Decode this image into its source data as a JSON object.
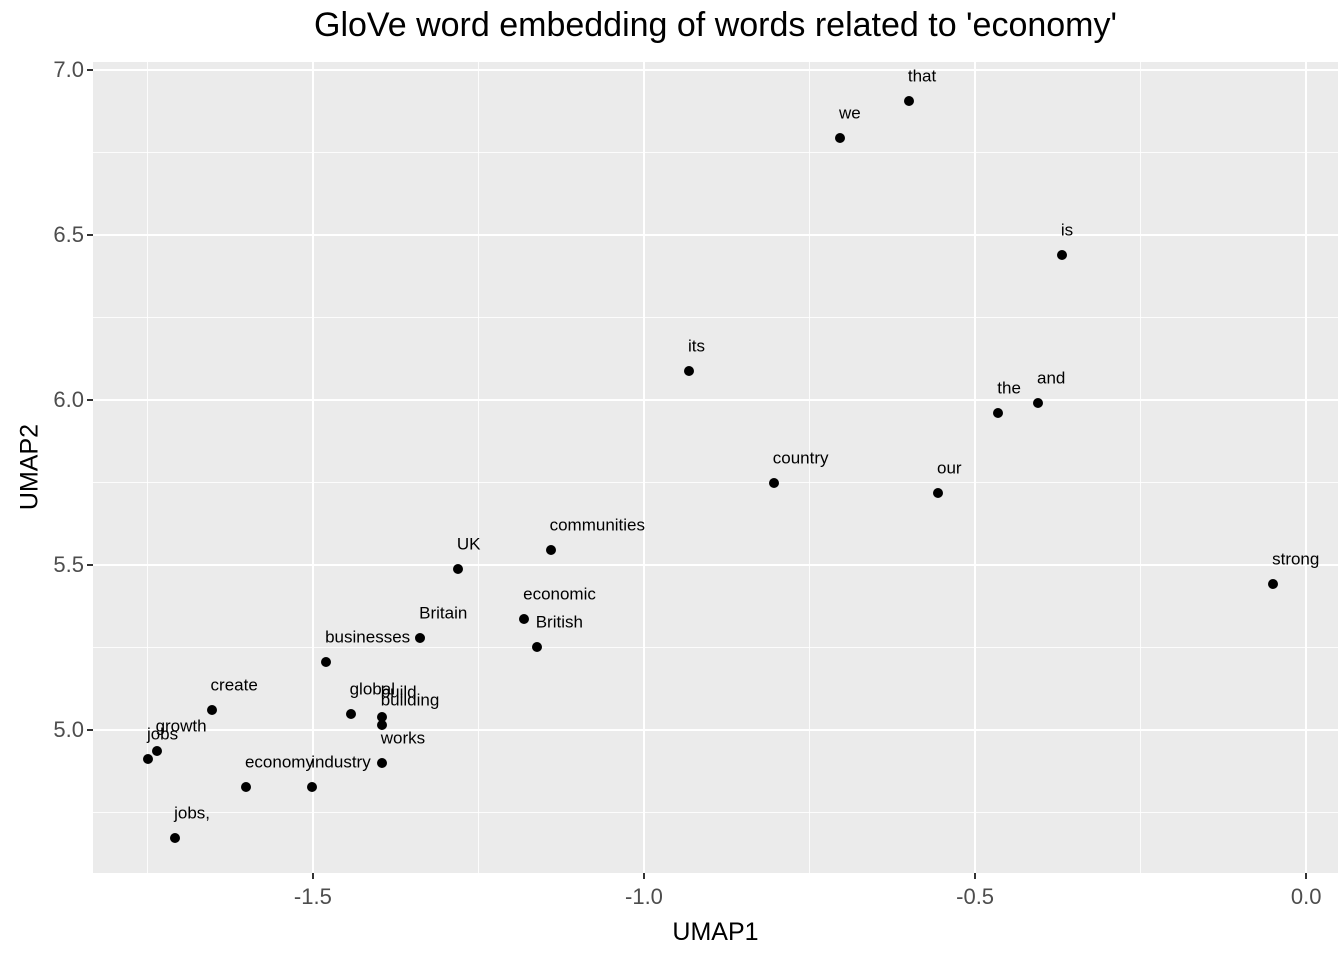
{
  "title": "GloVe word embedding of words related to 'economy'",
  "chart_data": {
    "type": "scatter",
    "title": "GloVe word embedding of words related to 'economy'",
    "xlabel": "UMAP1",
    "ylabel": "UMAP2",
    "xlim": [
      -1.832,
      0.048
    ],
    "ylim": [
      4.567,
      7.024
    ],
    "x_major_ticks": [
      -1.5,
      -1.0,
      -0.5,
      0.0
    ],
    "x_minor_ticks": [
      -1.75,
      -1.25,
      -0.75,
      -0.25
    ],
    "y_major_ticks": [
      7.0,
      6.5,
      6.0,
      5.5,
      5.0
    ],
    "y_minor_ticks": [
      6.75,
      6.25,
      5.75,
      5.25,
      4.75
    ],
    "grid": true,
    "legend": false,
    "points": [
      {
        "word": "that",
        "x": -0.6,
        "y": 6.906
      },
      {
        "word": "we",
        "x": -0.704,
        "y": 6.794
      },
      {
        "word": "is",
        "x": -0.369,
        "y": 6.439
      },
      {
        "word": "its",
        "x": -0.932,
        "y": 6.088
      },
      {
        "word": "the",
        "x": -0.465,
        "y": 5.961
      },
      {
        "word": "and",
        "x": -0.405,
        "y": 5.991
      },
      {
        "word": "country",
        "x": -0.804,
        "y": 5.748
      },
      {
        "word": "our",
        "x": -0.556,
        "y": 5.718
      },
      {
        "word": "communities",
        "x": -1.141,
        "y": 5.545
      },
      {
        "word": "UK",
        "x": -1.281,
        "y": 5.488
      },
      {
        "word": "strong",
        "x": -0.05,
        "y": 5.442
      },
      {
        "word": "economic",
        "x": -1.181,
        "y": 5.336
      },
      {
        "word": "Britain",
        "x": -1.338,
        "y": 5.279
      },
      {
        "word": "British",
        "x": -1.162,
        "y": 5.252
      },
      {
        "word": "businesses",
        "x": -1.48,
        "y": 5.206
      },
      {
        "word": "create",
        "x": -1.653,
        "y": 5.061
      },
      {
        "word": "global",
        "x": -1.443,
        "y": 5.048
      },
      {
        "word": "build",
        "x": -1.396,
        "y": 5.039
      },
      {
        "word": "building",
        "x": -1.396,
        "y": 5.015
      },
      {
        "word": "growth",
        "x": -1.736,
        "y": 4.936
      },
      {
        "word": "jobs",
        "x": -1.749,
        "y": 4.912
      },
      {
        "word": "works",
        "x": -1.396,
        "y": 4.9
      },
      {
        "word": "economy",
        "x": -1.601,
        "y": 4.827
      },
      {
        "word": "industry",
        "x": -1.501,
        "y": 4.827
      },
      {
        "word": "jobs,",
        "x": -1.708,
        "y": 4.673
      }
    ]
  },
  "style": {
    "panel_background": "#ebebeb",
    "grid_color": "#ffffff",
    "point_color": "#000000",
    "label_color": "#000000",
    "tick_text_color": "#4d4d4d",
    "title_color": "#000000"
  }
}
